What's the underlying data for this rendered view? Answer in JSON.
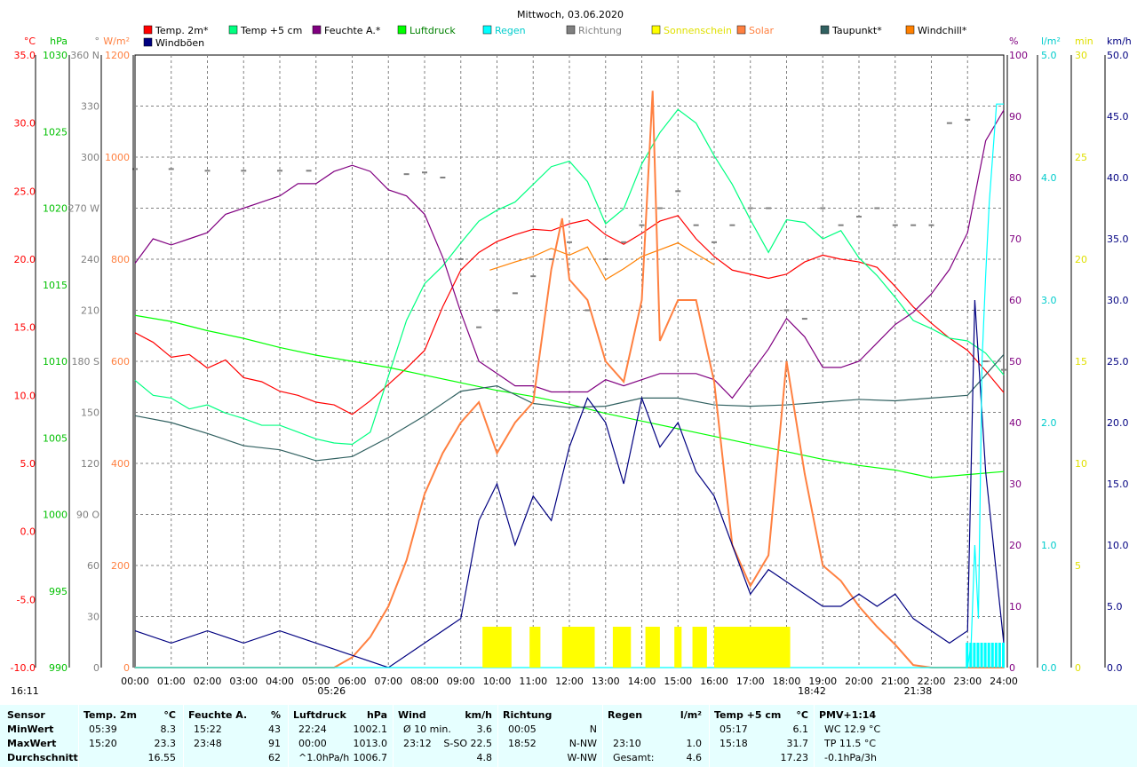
{
  "chart_data": {
    "type": "line",
    "title": "Mittwoch, 03.06.2020",
    "x_ticks": [
      "00:00",
      "01:00",
      "02:00",
      "03:00",
      "04:00",
      "05:00",
      "06:00",
      "07:00",
      "08:00",
      "09:00",
      "10:00",
      "11:00",
      "12:00",
      "13:00",
      "14:00",
      "15:00",
      "16:00",
      "17:00",
      "18:00",
      "19:00",
      "20:00",
      "21:00",
      "22:00",
      "23:00",
      "24:00"
    ],
    "legend": [
      {
        "label": "Temp. 2m*",
        "color": "#ff0000",
        "text_color": "#000000"
      },
      {
        "label": "Temp +5 cm",
        "color": "#00ff80",
        "text_color": "#000000"
      },
      {
        "label": "Feuchte A.*",
        "color": "#800080",
        "text_color": "#000000"
      },
      {
        "label": "Luftdruck",
        "color": "#00ff00",
        "text_color": "#008000"
      },
      {
        "label": "Regen",
        "color": "#00ffff",
        "text_color": "#00cccc"
      },
      {
        "label": "Richtung",
        "color": "#808080",
        "text_color": "#808080"
      },
      {
        "label": "Sonnenschein",
        "color": "#ffff00",
        "text_color": "#e0e000"
      },
      {
        "label": "Solar",
        "color": "#ff8040",
        "text_color": "#ff8040"
      },
      {
        "label": "Taupunkt*",
        "color": "#306060",
        "text_color": "#000000"
      },
      {
        "label": "Windchill*",
        "color": "#ff8000",
        "text_color": "#000000"
      },
      {
        "label": "Windböen",
        "color": "#000080",
        "text_color": "#000000"
      }
    ],
    "axes": {
      "temp": {
        "unit": "°C",
        "ticks": [
          "35.0",
          "30.0",
          "25.0",
          "20.0",
          "15.0",
          "10.0",
          "5.0",
          "0.0",
          "-5.0",
          "-10.0"
        ],
        "color": "#ff0000",
        "range": [
          -10,
          35
        ]
      },
      "pressure": {
        "unit": "hPa",
        "ticks": [
          "1030",
          "1025",
          "1020",
          "1015",
          "1010",
          "1005",
          "1000",
          "995",
          "990"
        ],
        "color": "#00c000",
        "range": [
          990,
          1030
        ]
      },
      "direction": {
        "unit": "°",
        "ticks": [
          "360 N",
          "330",
          "300",
          "270 W",
          "240",
          "210",
          "180 S",
          "150",
          "120",
          "90 O",
          "60",
          "30",
          "0"
        ],
        "color": "#808080",
        "range": [
          0,
          360
        ]
      },
      "solar": {
        "unit": "W/m²",
        "ticks": [
          "1200",
          "1000",
          "800",
          "600",
          "400",
          "200",
          "0"
        ],
        "color": "#ff8040",
        "range": [
          0,
          1200
        ]
      },
      "humidity": {
        "unit": "%",
        "ticks": [
          "100",
          "90",
          "80",
          "70",
          "60",
          "50",
          "40",
          "30",
          "20",
          "10",
          "0"
        ],
        "color": "#800080",
        "range": [
          0,
          100
        ]
      },
      "rain": {
        "unit": "l/m²",
        "ticks": [
          "5.0",
          "4.0",
          "3.0",
          "2.0",
          "1.0",
          "0.0"
        ],
        "color": "#00cccc",
        "range": [
          0,
          5
        ]
      },
      "sunshine": {
        "unit": "min",
        "ticks": [
          "30",
          "25",
          "20",
          "15",
          "10",
          "5",
          "0"
        ],
        "color": "#e0e000",
        "range": [
          0,
          30
        ]
      },
      "wind": {
        "unit": "km/h",
        "ticks": [
          "50.0",
          "45.0",
          "40.0",
          "35.0",
          "30.0",
          "25.0",
          "20.0",
          "15.0",
          "10.0",
          "5.0",
          "0.0"
        ],
        "color": "#000080",
        "range": [
          0,
          50
        ]
      }
    },
    "series": [
      {
        "name": "Temp. 2m*",
        "axis": "temp",
        "color": "#ff0000",
        "x": [
          0,
          0.5,
          1,
          1.5,
          2,
          2.5,
          3,
          3.5,
          4,
          4.5,
          5,
          5.5,
          6,
          6.5,
          7,
          7.5,
          8,
          8.5,
          9,
          9.5,
          10,
          10.5,
          11,
          11.5,
          12,
          12.5,
          13,
          13.5,
          14,
          14.5,
          15,
          15.5,
          16,
          16.5,
          17,
          17.5,
          18,
          18.5,
          19,
          19.5,
          20,
          20.5,
          21,
          21.5,
          22,
          22.5,
          23,
          23.5,
          24
        ],
        "y": [
          14.6,
          13.9,
          12.8,
          13.0,
          12.0,
          12.6,
          11.3,
          11.0,
          10.3,
          10.0,
          9.5,
          9.3,
          8.6,
          9.6,
          10.8,
          12.0,
          13.3,
          16.5,
          19.2,
          20.5,
          21.3,
          21.8,
          22.2,
          22.1,
          22.6,
          22.9,
          21.8,
          21.1,
          21.9,
          22.8,
          23.2,
          21.5,
          20.2,
          19.2,
          18.9,
          18.6,
          18.9,
          19.8,
          20.3,
          20.0,
          19.8,
          19.4,
          18.0,
          16.5,
          15.3,
          14.2,
          13.3,
          11.8,
          10.2
        ]
      },
      {
        "name": "Temp +5 cm",
        "axis": "temp",
        "color": "#00ff80",
        "x": [
          0,
          0.5,
          1,
          1.5,
          2,
          2.5,
          3,
          3.5,
          4,
          4.5,
          5,
          5.5,
          6,
          6.5,
          7,
          7.5,
          8,
          8.5,
          9,
          9.5,
          10,
          10.5,
          11,
          11.5,
          12,
          12.5,
          13,
          13.5,
          14,
          14.5,
          15,
          15.5,
          16,
          16.5,
          17,
          17.5,
          18,
          18.5,
          19,
          19.5,
          20,
          20.5,
          21,
          21.5,
          22,
          22.5,
          23,
          23.5,
          24
        ],
        "y": [
          11.1,
          10.0,
          9.8,
          9.0,
          9.3,
          8.7,
          8.3,
          7.8,
          7.8,
          7.3,
          6.8,
          6.5,
          6.4,
          7.3,
          11.4,
          15.5,
          18.2,
          19.5,
          21.2,
          22.8,
          23.6,
          24.2,
          25.5,
          26.8,
          27.2,
          25.7,
          22.6,
          23.7,
          27.0,
          29.3,
          31.0,
          30.0,
          27.6,
          25.5,
          22.9,
          20.5,
          22.9,
          22.7,
          21.5,
          22.1,
          20.1,
          18.8,
          17.2,
          15.5,
          14.9,
          14.2,
          14.0,
          13.1,
          11.5
        ]
      },
      {
        "name": "Feuchte A.*",
        "axis": "humidity",
        "color": "#800080",
        "x": [
          0,
          0.5,
          1,
          1.5,
          2,
          2.5,
          3,
          3.5,
          4,
          4.5,
          5,
          5.5,
          6,
          6.5,
          7,
          7.5,
          8,
          8.5,
          9,
          9.5,
          10,
          10.5,
          11,
          11.5,
          12,
          12.5,
          13,
          13.5,
          14,
          14.5,
          15,
          15.5,
          16,
          16.5,
          17,
          17.5,
          18,
          18.5,
          19,
          19.5,
          20,
          20.5,
          21,
          21.5,
          22,
          22.5,
          23,
          23.5,
          24
        ],
        "y": [
          66,
          70,
          69,
          70,
          71,
          74,
          75,
          76,
          77,
          79,
          79,
          81,
          82,
          81,
          78,
          77,
          74,
          67,
          58,
          50,
          48,
          46,
          46,
          45,
          45,
          45,
          47,
          46,
          47,
          48,
          48,
          48,
          47,
          44,
          48,
          52,
          57,
          54,
          49,
          49,
          50,
          53,
          56,
          58,
          61,
          65,
          71,
          86,
          91
        ]
      },
      {
        "name": "Luftdruck",
        "axis": "pressure",
        "color": "#00ff00",
        "x": [
          0,
          1,
          2,
          3,
          4,
          5,
          6,
          7,
          8,
          9,
          10,
          11,
          12,
          13,
          14,
          15,
          16,
          17,
          18,
          19,
          20,
          21,
          22,
          23,
          24
        ],
        "y": [
          1013.0,
          1012.6,
          1012.0,
          1011.5,
          1010.9,
          1010.4,
          1010.0,
          1009.6,
          1009.1,
          1008.6,
          1008.1,
          1007.7,
          1007.2,
          1006.6,
          1006.1,
          1005.6,
          1005.1,
          1004.6,
          1004.1,
          1003.6,
          1003.2,
          1002.9,
          1002.4,
          1002.6,
          1002.8
        ]
      },
      {
        "name": "Taupunkt*",
        "axis": "temp",
        "color": "#306060",
        "x": [
          0,
          1,
          2,
          3,
          4,
          5,
          6,
          7,
          8,
          9,
          10,
          11,
          12,
          13,
          14,
          15,
          16,
          17,
          18,
          19,
          20,
          21,
          22,
          23,
          24
        ],
        "y": [
          8.5,
          8.0,
          7.2,
          6.3,
          6.0,
          5.2,
          5.5,
          6.9,
          8.5,
          10.3,
          10.7,
          9.4,
          9.1,
          9.2,
          9.8,
          9.8,
          9.3,
          9.2,
          9.3,
          9.5,
          9.7,
          9.6,
          9.8,
          10.0,
          13.0
        ]
      },
      {
        "name": "Windchill*",
        "axis": "temp",
        "color": "#ff8000",
        "x": [
          9.8,
          10.5,
          11,
          11.5,
          12,
          12.5,
          13,
          13.5,
          14,
          14.5,
          15,
          15.5,
          16
        ],
        "y": [
          19.2,
          19.8,
          20.2,
          20.8,
          20.3,
          20.9,
          18.5,
          19.3,
          20.2,
          20.7,
          21.2,
          20.4,
          19.6
        ]
      },
      {
        "name": "Solar",
        "axis": "solar",
        "color": "#ff8040",
        "x": [
          0,
          5.5,
          6,
          6.5,
          7,
          7.5,
          8,
          8.5,
          9,
          9.5,
          10,
          10.5,
          11,
          11.5,
          11.8,
          12,
          12.5,
          13,
          13.5,
          14,
          14.3,
          14.5,
          15,
          15.5,
          16,
          16.5,
          17,
          17.5,
          18,
          18.5,
          19,
          19.5,
          20,
          20.5,
          21,
          21.5,
          22,
          24
        ],
        "y": [
          0,
          0,
          20,
          60,
          120,
          210,
          340,
          420,
          480,
          520,
          420,
          480,
          520,
          780,
          880,
          760,
          720,
          600,
          560,
          720,
          1130,
          640,
          720,
          720,
          560,
          240,
          160,
          220,
          600,
          380,
          200,
          170,
          120,
          80,
          45,
          5,
          0,
          0
        ]
      },
      {
        "name": "Windböen",
        "axis": "wind",
        "color": "#000080",
        "x": [
          0,
          1,
          2,
          3,
          4,
          5,
          6,
          7,
          8,
          9,
          9.5,
          10,
          10.5,
          11,
          11.5,
          12,
          12.5,
          13,
          13.5,
          14,
          14.5,
          15,
          15.5,
          16,
          16.5,
          17,
          17.5,
          18,
          18.5,
          19,
          19.5,
          20,
          20.5,
          21,
          21.5,
          22,
          22.5,
          23,
          23.2,
          23.5,
          24
        ],
        "y": [
          3,
          2,
          3,
          2,
          3,
          2,
          1,
          0,
          2,
          4,
          12,
          15,
          10,
          14,
          12,
          18,
          22,
          20,
          15,
          22,
          18,
          20,
          16,
          14,
          10,
          6,
          8,
          7,
          6,
          5,
          5,
          6,
          5,
          6,
          4,
          3,
          2,
          3,
          30,
          16,
          2
        ]
      },
      {
        "name": "Richtung",
        "axis": "direction",
        "color": "#808080",
        "x": [
          0,
          1,
          2,
          3,
          4,
          4.8,
          7.5,
          8,
          8.5,
          9,
          9.5,
          10,
          10.5,
          11,
          11.5,
          12,
          12.5,
          13,
          13.5,
          14,
          14.5,
          15,
          15.5,
          16,
          16.5,
          17,
          17.5,
          18,
          18.5,
          19,
          19.5,
          20,
          20.5,
          21,
          21.5,
          22,
          22.5,
          23,
          23.5,
          24
        ],
        "y": [
          293,
          293,
          292,
          292,
          292,
          292,
          290,
          291,
          288,
          240,
          200,
          210,
          220,
          230,
          240,
          250,
          210,
          240,
          250,
          260,
          270,
          280,
          260,
          250,
          260,
          270,
          270,
          210,
          205,
          270,
          260,
          265,
          270,
          260,
          260,
          260,
          320,
          322,
          180,
          175
        ]
      },
      {
        "name": "Regen",
        "axis": "rain",
        "color": "#00ffff",
        "x": [
          0,
          23.0,
          23.1,
          23.2,
          23.3,
          23.4,
          23.5,
          23.6,
          23.7,
          23.8,
          23.9,
          24
        ],
        "y": [
          0,
          0,
          0.2,
          1.0,
          0.4,
          2.5,
          3.2,
          3.8,
          4.2,
          4.6,
          4.6,
          4.6
        ]
      },
      {
        "name": "Sonnenschein",
        "axis": "sunshine",
        "color": "#ffff00",
        "x": [
          9.6,
          10.4,
          10.9,
          11.2,
          11.8,
          12.7,
          13.2,
          13.7,
          14.1,
          14.5,
          14.9,
          15.1,
          15.4,
          15.8,
          16.0,
          18.1
        ],
        "y": [
          2,
          2,
          2,
          2,
          2,
          2,
          2,
          2,
          2,
          2,
          2,
          2,
          2,
          2,
          2,
          2
        ]
      }
    ],
    "markers": [
      {
        "label": "16:11",
        "x": 0
      },
      {
        "label": "05:26",
        "x": 5.43
      },
      {
        "label": "18:42",
        "x": 18.7
      },
      {
        "label": "21:38",
        "x": 21.63
      }
    ]
  },
  "stats": {
    "row_labels": [
      "Sensor",
      "MinWert",
      "MaxWert",
      "Durchschnitt"
    ],
    "columns": [
      {
        "header": "Temp. 2m",
        "unit": "°C",
        "rows": [
          [
            "05:39",
            "8.3"
          ],
          [
            "15:20",
            "23.3"
          ],
          [
            "",
            "16.55"
          ]
        ]
      },
      {
        "header": "Feuchte A.",
        "unit": "%",
        "rows": [
          [
            "15:22",
            "43"
          ],
          [
            "23:48",
            "91"
          ],
          [
            "",
            "62"
          ]
        ]
      },
      {
        "header": "Luftdruck",
        "unit": "hPa",
        "rows": [
          [
            "22:24",
            "1002.1"
          ],
          [
            "00:00",
            "1013.0"
          ],
          [
            "^1.0hPa/h",
            "1006.7"
          ]
        ]
      },
      {
        "header": "Wind",
        "unit": "km/h",
        "rows": [
          [
            "Ø 10 min.",
            "3.6"
          ],
          [
            "23:12",
            "S-SO 22.5"
          ],
          [
            "",
            "4.8"
          ]
        ]
      },
      {
        "header": "Richtung",
        "unit": "",
        "rows": [
          [
            "00:05",
            "N"
          ],
          [
            "18:52",
            "N-NW"
          ],
          [
            "",
            "W-NW"
          ]
        ]
      },
      {
        "header": "Regen",
        "unit": "l/m²",
        "rows": [
          [
            "",
            ""
          ],
          [
            "23:10",
            "1.0"
          ],
          [
            "Gesamt:",
            "4.6"
          ]
        ]
      },
      {
        "header": "Temp +5 cm",
        "unit": "°C",
        "rows": [
          [
            "05:17",
            "6.1"
          ],
          [
            "15:18",
            "31.7"
          ],
          [
            "",
            "17.23"
          ]
        ]
      },
      {
        "header": "PMV+1:14",
        "unit": "",
        "rows": [
          [
            "WC 12.9 °C",
            ""
          ],
          [
            "TP 11.5 °C",
            ""
          ],
          [
            "-0.1hPa/3h",
            ""
          ]
        ]
      }
    ]
  }
}
